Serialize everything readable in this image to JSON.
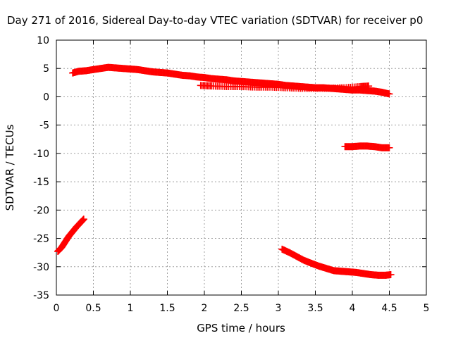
{
  "chart_data": {
    "type": "scatter",
    "title": "Day 271 of 2016, Sidereal Day-to-day VTEC variation (SDTVAR) for receiver p0",
    "xlabel": "GPS time / hours",
    "ylabel": "SDTVAR / TECUs",
    "xlim": [
      0,
      5
    ],
    "ylim": [
      -35,
      10
    ],
    "xticks": [
      0,
      0.5,
      1,
      1.5,
      2,
      2.5,
      3,
      3.5,
      4,
      4.5,
      5
    ],
    "yticks": [
      -35,
      -30,
      -25,
      -20,
      -15,
      -10,
      -5,
      0,
      5,
      10
    ],
    "xtick_labels": [
      "0",
      "0.5",
      "1",
      "1.5",
      "2",
      "2.5",
      "3",
      "3.5",
      "4",
      "4.5",
      "5"
    ],
    "ytick_labels": [
      "-35",
      "-30",
      "-25",
      "-20",
      "-15",
      "-10",
      "-5",
      "0",
      "5",
      "10"
    ],
    "grid": true,
    "marker": "plus",
    "color": "#ff0000",
    "series": [
      {
        "points": [
          [
            0.22,
            4.2
          ],
          [
            0.3,
            4.5
          ],
          [
            0.4,
            4.6
          ],
          [
            0.5,
            4.8
          ],
          [
            0.6,
            5.0
          ],
          [
            0.7,
            5.2
          ],
          [
            0.8,
            5.1
          ],
          [
            0.9,
            5.0
          ],
          [
            1.0,
            4.9
          ],
          [
            1.1,
            4.8
          ],
          [
            1.2,
            4.6
          ],
          [
            1.3,
            4.4
          ],
          [
            1.4,
            4.3
          ],
          [
            1.5,
            4.2
          ],
          [
            1.6,
            4.0
          ],
          [
            1.7,
            3.8
          ],
          [
            1.8,
            3.7
          ],
          [
            1.9,
            3.5
          ],
          [
            2.0,
            3.4
          ],
          [
            2.1,
            3.2
          ],
          [
            2.2,
            3.1
          ],
          [
            2.3,
            3.0
          ],
          [
            2.4,
            2.8
          ],
          [
            2.5,
            2.7
          ],
          [
            2.6,
            2.6
          ],
          [
            2.7,
            2.5
          ],
          [
            2.8,
            2.4
          ],
          [
            2.9,
            2.3
          ],
          [
            3.0,
            2.2
          ],
          [
            3.1,
            2.0
          ],
          [
            3.2,
            1.9
          ],
          [
            3.3,
            1.8
          ],
          [
            3.4,
            1.7
          ],
          [
            3.5,
            1.6
          ],
          [
            3.6,
            1.6
          ],
          [
            3.7,
            1.5
          ],
          [
            3.8,
            1.4
          ],
          [
            3.9,
            1.3
          ],
          [
            4.0,
            1.2
          ],
          [
            4.1,
            1.2
          ],
          [
            4.2,
            1.1
          ],
          [
            4.3,
            1.0
          ],
          [
            4.4,
            0.8
          ],
          [
            4.5,
            0.5
          ]
        ]
      },
      {
        "points": [
          [
            1.95,
            2.0
          ],
          [
            2.1,
            1.9
          ],
          [
            2.3,
            1.8
          ],
          [
            2.5,
            1.8
          ],
          [
            2.7,
            1.7
          ],
          [
            2.9,
            1.7
          ],
          [
            3.1,
            1.6
          ],
          [
            3.3,
            1.5
          ],
          [
            3.5,
            1.5
          ],
          [
            3.7,
            1.5
          ],
          [
            3.9,
            1.6
          ],
          [
            4.1,
            1.8
          ],
          [
            4.22,
            1.9
          ]
        ]
      },
      {
        "points": [
          [
            3.9,
            -8.8
          ],
          [
            4.0,
            -8.8
          ],
          [
            4.1,
            -8.7
          ],
          [
            4.2,
            -8.7
          ],
          [
            4.3,
            -8.8
          ],
          [
            4.4,
            -9.0
          ],
          [
            4.5,
            -9.0
          ]
        ]
      },
      {
        "points": [
          [
            0.02,
            -27.3
          ],
          [
            0.07,
            -26.6
          ],
          [
            0.12,
            -25.6
          ],
          [
            0.17,
            -24.6
          ],
          [
            0.22,
            -23.8
          ],
          [
            0.27,
            -23.0
          ],
          [
            0.32,
            -22.3
          ],
          [
            0.37,
            -21.6
          ]
        ]
      },
      {
        "points": [
          [
            3.05,
            -26.9
          ],
          [
            3.15,
            -27.5
          ],
          [
            3.25,
            -28.2
          ],
          [
            3.35,
            -28.9
          ],
          [
            3.45,
            -29.4
          ],
          [
            3.55,
            -29.9
          ],
          [
            3.65,
            -30.3
          ],
          [
            3.75,
            -30.7
          ],
          [
            3.85,
            -30.8
          ],
          [
            3.95,
            -30.9
          ],
          [
            4.05,
            -31.0
          ],
          [
            4.15,
            -31.2
          ],
          [
            4.25,
            -31.4
          ],
          [
            4.35,
            -31.5
          ],
          [
            4.45,
            -31.5
          ],
          [
            4.52,
            -31.4
          ]
        ]
      }
    ]
  }
}
